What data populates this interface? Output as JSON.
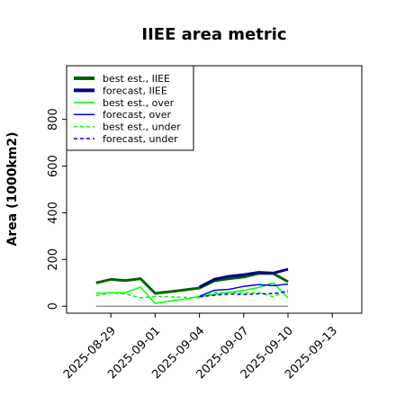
{
  "chart_data": {
    "type": "line",
    "title": "IIEE area metric",
    "xlabel": "",
    "ylabel": "Area (1000km2)",
    "ylim": [
      -30,
      1030
    ],
    "yticks": [
      0,
      200,
      400,
      600,
      800
    ],
    "x_tick_labels": [
      "2025-08-29",
      "2025-09-01",
      "2025-09-04",
      "2025-09-07",
      "2025-09-10",
      "2025-09-13"
    ],
    "x_tick_highlight": "2025-09-04",
    "x_range": [
      "2025-08-26",
      "2025-09-15"
    ],
    "grid": false,
    "legend_position": "top-left",
    "baseline": {
      "start": "2025-08-28",
      "end": "2025-09-10",
      "value": 0,
      "color": "#808080"
    },
    "colors": {
      "dark_green": "#006400",
      "navy": "#00008b",
      "light_green": "#00ff00",
      "blue": "#0000ff",
      "highlight_tick": "#008000"
    },
    "series": [
      {
        "name": "best est., IIEE",
        "color": "#006400",
        "style": "solid",
        "width": 3,
        "points": [
          [
            "2025-08-28",
            100
          ],
          [
            "2025-08-29",
            115
          ],
          [
            "2025-08-30",
            110
          ],
          [
            "2025-08-31",
            118
          ],
          [
            "2025-09-01",
            55
          ],
          [
            "2025-09-02",
            62
          ],
          [
            "2025-09-03",
            70
          ],
          [
            "2025-09-04",
            78
          ],
          [
            "2025-09-05",
            108
          ],
          [
            "2025-09-06",
            118
          ],
          [
            "2025-09-07",
            125
          ],
          [
            "2025-09-08",
            140
          ],
          [
            "2025-09-09",
            140
          ],
          [
            "2025-09-10",
            105
          ]
        ]
      },
      {
        "name": "forecast, IIEE",
        "color": "#00008b",
        "style": "solid",
        "width": 3,
        "points": [
          [
            "2025-09-04",
            82
          ],
          [
            "2025-09-05",
            115
          ],
          [
            "2025-09-06",
            128
          ],
          [
            "2025-09-07",
            135
          ],
          [
            "2025-09-08",
            145
          ],
          [
            "2025-09-09",
            142
          ],
          [
            "2025-09-10",
            158
          ]
        ]
      },
      {
        "name": "best est., over",
        "color": "#00ff00",
        "style": "solid",
        "width": 1.5,
        "points": [
          [
            "2025-08-28",
            55
          ],
          [
            "2025-08-29",
            58
          ],
          [
            "2025-08-30",
            58
          ],
          [
            "2025-08-31",
            82
          ],
          [
            "2025-09-01",
            12
          ],
          [
            "2025-09-02",
            22
          ],
          [
            "2025-09-03",
            30
          ],
          [
            "2025-09-04",
            42
          ],
          [
            "2025-09-05",
            50
          ],
          [
            "2025-09-06",
            60
          ],
          [
            "2025-09-07",
            68
          ],
          [
            "2025-09-08",
            80
          ],
          [
            "2025-09-09",
            100
          ],
          [
            "2025-09-10",
            35
          ]
        ]
      },
      {
        "name": "forecast, over",
        "color": "#0000ff",
        "style": "solid",
        "width": 1.5,
        "points": [
          [
            "2025-09-04",
            42
          ],
          [
            "2025-09-05",
            68
          ],
          [
            "2025-09-06",
            72
          ],
          [
            "2025-09-07",
            85
          ],
          [
            "2025-09-08",
            92
          ],
          [
            "2025-09-09",
            88
          ],
          [
            "2025-09-10",
            95
          ]
        ]
      },
      {
        "name": "best est., under",
        "color": "#00ff00",
        "style": "dashed",
        "width": 1.5,
        "points": [
          [
            "2025-08-28",
            45
          ],
          [
            "2025-08-29",
            57
          ],
          [
            "2025-08-30",
            52
          ],
          [
            "2025-08-31",
            36
          ],
          [
            "2025-09-01",
            42
          ],
          [
            "2025-09-02",
            40
          ],
          [
            "2025-09-03",
            38
          ],
          [
            "2025-09-04",
            36
          ],
          [
            "2025-09-05",
            58
          ],
          [
            "2025-09-06",
            58
          ],
          [
            "2025-09-07",
            55
          ],
          [
            "2025-09-08",
            60
          ],
          [
            "2025-09-09",
            40
          ],
          [
            "2025-09-10",
            70
          ]
        ]
      },
      {
        "name": "forecast, under",
        "color": "#0000ff",
        "style": "dashed",
        "width": 1.5,
        "points": [
          [
            "2025-09-04",
            40
          ],
          [
            "2025-09-05",
            47
          ],
          [
            "2025-09-06",
            52
          ],
          [
            "2025-09-07",
            50
          ],
          [
            "2025-09-08",
            53
          ],
          [
            "2025-09-09",
            54
          ],
          [
            "2025-09-10",
            63
          ]
        ]
      }
    ]
  }
}
